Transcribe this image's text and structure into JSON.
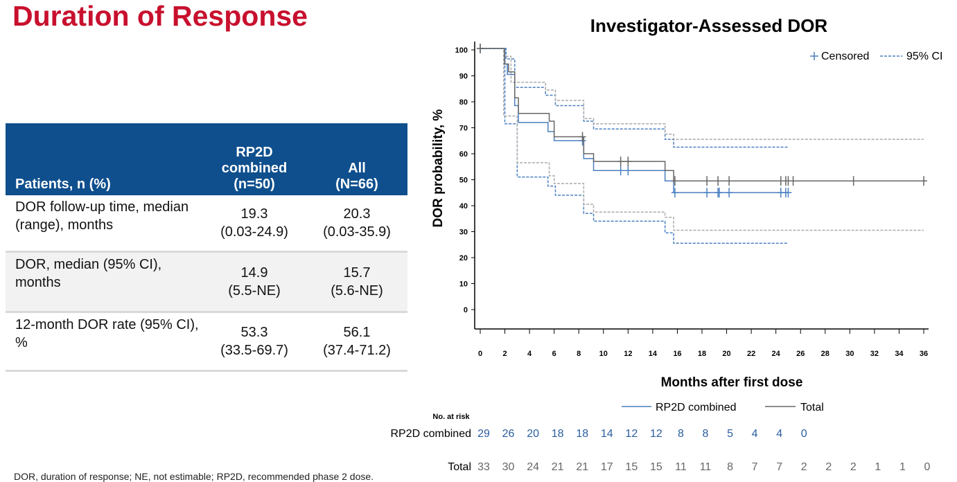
{
  "slide_title": "Duration of Response",
  "table": {
    "headers": [
      "Patients, n (%)",
      "RP2D\ncombined\n(n=50)",
      "All\n(N=66)"
    ],
    "rows": [
      {
        "label": "DOR follow-up time, median (range), months",
        "rp2d": [
          "19.3",
          "(0.03-24.9)"
        ],
        "all": [
          "20.3",
          "(0.03-35.9)"
        ]
      },
      {
        "label": "DOR, median (95% CI), months",
        "rp2d": [
          "14.9",
          "(5.5-NE)"
        ],
        "all": [
          "15.7",
          "(5.6-NE)"
        ]
      },
      {
        "label": "12-month DOR rate (95% CI), %",
        "rp2d": [
          "53.3",
          "(33.5-69.7)"
        ],
        "all": [
          "56.1",
          "(37.4-71.2)"
        ]
      }
    ]
  },
  "footnote": "DOR, duration of response; NE, not estimable; RP2D, recommended phase 2 dose.",
  "chart_data": {
    "type": "line",
    "title": "Investigator-Assessed DOR",
    "xlabel": "Months after first dose",
    "ylabel": "DOR probability, %",
    "xlim": [
      0,
      36
    ],
    "ylim": [
      0,
      100
    ],
    "xticks": [
      0,
      2,
      4,
      6,
      8,
      10,
      12,
      14,
      16,
      18,
      20,
      22,
      24,
      26,
      28,
      30,
      32,
      34,
      36
    ],
    "yticks": [
      0,
      10,
      20,
      30,
      40,
      50,
      60,
      70,
      80,
      90,
      100
    ],
    "grid": false,
    "legend_top": {
      "censored": "Censored",
      "ci": "95% CI",
      "position": "top-right"
    },
    "colors": {
      "rp2d": "#4a7fc1",
      "total": "#666666",
      "rp2d_ci": "#4a7fc1",
      "total_ci": "#aaaaaa"
    },
    "series": [
      {
        "name": "RP2D combined",
        "steps": [
          [
            0,
            100
          ],
          [
            2.0,
            94
          ],
          [
            2.2,
            90
          ],
          [
            2.8,
            78
          ],
          [
            3.1,
            71.5
          ],
          [
            5.5,
            68
          ],
          [
            6.0,
            64.5
          ],
          [
            8.4,
            57.6
          ],
          [
            9.2,
            53
          ],
          [
            15.0,
            49
          ],
          [
            15.7,
            44.5
          ],
          [
            25,
            44.5
          ]
        ],
        "censored": [
          0,
          8.3,
          11.4,
          12.0,
          15.8,
          18.4,
          19.3,
          19.4,
          20.2,
          24.4,
          24.8,
          25
        ],
        "ci_upper": [
          [
            0,
            100
          ],
          [
            2.1,
            96
          ],
          [
            2.8,
            85
          ],
          [
            5.3,
            82
          ],
          [
            6.1,
            78
          ],
          [
            8.4,
            72
          ],
          [
            9.2,
            69
          ],
          [
            15.0,
            65
          ],
          [
            15.7,
            62
          ],
          [
            25,
            62
          ]
        ],
        "ci_lower": [
          [
            0,
            100
          ],
          [
            2.0,
            71
          ],
          [
            3.0,
            50.5
          ],
          [
            5.5,
            47
          ],
          [
            6.1,
            43.5
          ],
          [
            8.4,
            36.5
          ],
          [
            9.2,
            33.5
          ],
          [
            15.0,
            29
          ],
          [
            15.7,
            25
          ],
          [
            25,
            25
          ]
        ]
      },
      {
        "name": "Total",
        "steps": [
          [
            0,
            100
          ],
          [
            1.97,
            94
          ],
          [
            2.3,
            91
          ],
          [
            2.8,
            81
          ],
          [
            3.1,
            75
          ],
          [
            5.6,
            72
          ],
          [
            6.0,
            66
          ],
          [
            8.4,
            59.5
          ],
          [
            9.2,
            56.5
          ],
          [
            15.0,
            53
          ],
          [
            15.7,
            49
          ],
          [
            36,
            49
          ]
        ],
        "censored": [
          0,
          8.3,
          11.4,
          12.0,
          15.8,
          18.4,
          19.3,
          20.2,
          24.4,
          24.8,
          25.0,
          25.4,
          30.3,
          36
        ],
        "ci_upper": [
          [
            0,
            100
          ],
          [
            2.0,
            97
          ],
          [
            2.5,
            87
          ],
          [
            5.3,
            84
          ],
          [
            6.1,
            80
          ],
          [
            8.4,
            73
          ],
          [
            9.2,
            71
          ],
          [
            15.0,
            67
          ],
          [
            15.7,
            65
          ],
          [
            36,
            65
          ]
        ],
        "ci_lower": [
          [
            0,
            100
          ],
          [
            1.9,
            74
          ],
          [
            3.0,
            56
          ],
          [
            5.6,
            51
          ],
          [
            6.0,
            48
          ],
          [
            8.4,
            40
          ],
          [
            9.2,
            37
          ],
          [
            15.0,
            35
          ],
          [
            15.7,
            30
          ],
          [
            36,
            30
          ]
        ]
      }
    ],
    "risk_table": {
      "title": "No. at risk",
      "rows": [
        {
          "label": "RP2D combined",
          "values": [
            29,
            26,
            20,
            18,
            18,
            14,
            12,
            12,
            8,
            8,
            5,
            4,
            4,
            0
          ]
        },
        {
          "label": "Total",
          "values": [
            33,
            30,
            24,
            21,
            21,
            17,
            15,
            15,
            11,
            11,
            8,
            7,
            7,
            2,
            2,
            2,
            1,
            1,
            0
          ]
        }
      ]
    }
  }
}
